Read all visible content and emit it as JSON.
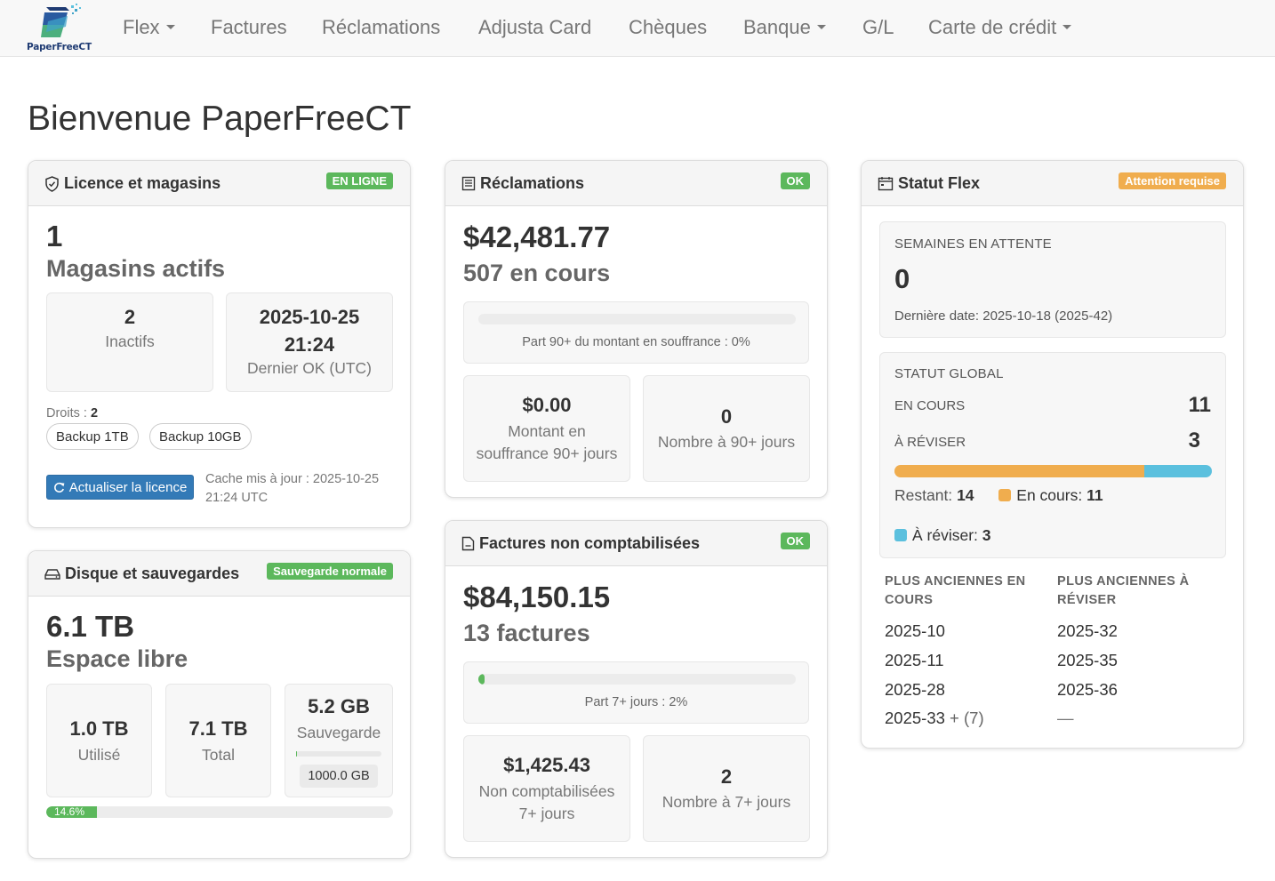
{
  "brand": {
    "name": "PaperFreeCT"
  },
  "nav": [
    {
      "label": "Flex",
      "dropdown": true
    },
    {
      "label": "Factures",
      "dropdown": false
    },
    {
      "label": "Réclamations",
      "dropdown": false
    },
    {
      "label": "Adjusta Card",
      "dropdown": false
    },
    {
      "label": "Chèques",
      "dropdown": false
    },
    {
      "label": "Banque",
      "dropdown": true
    },
    {
      "label": "G/L",
      "dropdown": false
    },
    {
      "label": "Carte de crédit",
      "dropdown": true
    }
  ],
  "page_title": "Bienvenue PaperFreeCT",
  "licence": {
    "title": "Licence et magasins",
    "badge": "EN LIGNE",
    "active_count": "1",
    "active_label": "Magasins actifs",
    "inactive_count": "2",
    "inactive_label": "Inactifs",
    "last_ok_date": "2025-10-25",
    "last_ok_time": "21:24",
    "last_ok_label": "Dernier OK (UTC)",
    "rights_label": "Droits :",
    "rights_count": "2",
    "rights": [
      "Backup 1TB",
      "Backup 10GB"
    ],
    "refresh_button": "Actualiser la licence",
    "cache_line1": "Cache mis à jour : 2025-10-25",
    "cache_line2": "21:24 UTC"
  },
  "disk": {
    "title": "Disque et sauvegardes",
    "badge": "Sauvegarde normale",
    "free_value": "6.1 TB",
    "free_label": "Espace libre",
    "used_value": "1.0 TB",
    "used_label": "Utilisé",
    "total_value": "7.1 TB",
    "total_label": "Total",
    "backup_value": "5.2 GB",
    "backup_label": "Sauvegarde",
    "backup_quota": "1000.0 GB",
    "backup_fraction": 0.005,
    "used_percent_label": "14.6%",
    "used_fraction": 0.146
  },
  "claims": {
    "title": "Réclamations",
    "badge": "OK",
    "amount": "$42,481.77",
    "count_label": "507 en cours",
    "share_fraction": 0,
    "share_label": "Part 90+ du montant en souffrance : 0%",
    "overdue_amount": "$0.00",
    "overdue_amount_label_1": "Montant en",
    "overdue_amount_label_2": "souffrance 90+ jours",
    "overdue_count": "0",
    "overdue_count_label": "Nombre à 90+ jours"
  },
  "invoices": {
    "title": "Factures non comptabilisées",
    "badge": "OK",
    "amount": "$84,150.15",
    "count_label": "13 factures",
    "share_fraction": 0.02,
    "share_label": "Part 7+ jours : 2%",
    "overdue_amount": "$1,425.43",
    "overdue_amount_label_1": "Non comptabilisées",
    "overdue_amount_label_2": "7+ jours",
    "overdue_count": "2",
    "overdue_count_label": "Nombre à 7+ jours"
  },
  "flex": {
    "title": "Statut Flex",
    "badge": "Attention requise",
    "pending_header": "SEMAINES EN ATTENTE",
    "pending_count": "0",
    "last_date": "Dernière date: 2025-10-18 (2025-42)",
    "global_header": "STATUT GLOBAL",
    "in_progress_label": "EN COURS",
    "in_progress_count": "11",
    "to_review_label": "À RÉVISER",
    "to_review_count": "3",
    "in_progress_fraction": 0.786,
    "to_review_fraction": 0.214,
    "remaining_label": "Restant:",
    "remaining_count": "14",
    "legend_in_progress": "En cours:",
    "legend_in_progress_count": "11",
    "legend_to_review": "À réviser:",
    "legend_to_review_count": "3",
    "oldest_in_progress_header": "PLUS ANCIENNES EN COURS",
    "oldest_to_review_header": "PLUS ANCIENNES À RÉVISER",
    "oldest_in_progress": [
      "2025-10",
      "2025-11",
      "2025-28",
      "2025-33"
    ],
    "oldest_in_progress_more": "+ (7)",
    "oldest_to_review": [
      "2025-32",
      "2025-35",
      "2025-36",
      "—"
    ],
    "colors": {
      "in_progress": "#f0ad4e",
      "to_review": "#5bc0de"
    }
  },
  "colors": {
    "success": "#5cb85c",
    "warning": "#f0ad4e",
    "info": "#5bc0de",
    "primary": "#337ab7"
  }
}
